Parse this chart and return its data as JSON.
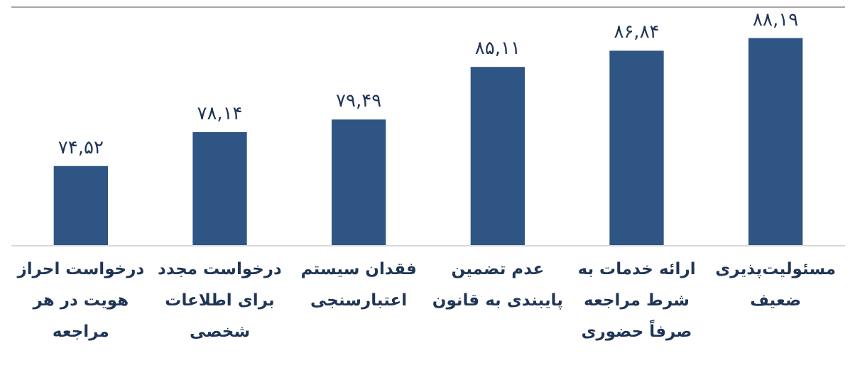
{
  "chart_data": {
    "type": "bar",
    "categories": [
      "درخواست احراز هویت در هر مراجعه",
      "درخواست مجدد برای اطلاعات شخصی",
      "فقدان سیستم اعتبارسنجی",
      "عدم تضمین پایبندی به قانون",
      "ارائه خدمات به شرط مراجعه صرفاً حضوری",
      "مسئولیت‌پذیری ضعیف"
    ],
    "values": [
      74.52,
      78.14,
      79.49,
      85.11,
      86.84,
      88.19
    ],
    "value_labels": [
      "۷۴,۵۲",
      "۷۸,۱۴",
      "۷۹,۴۹",
      "۸۵,۱۱",
      "۸۶,۸۴",
      "۸۸,۱۹"
    ],
    "color": "#2e5584",
    "ylim": [
      66,
      91.5
    ]
  }
}
